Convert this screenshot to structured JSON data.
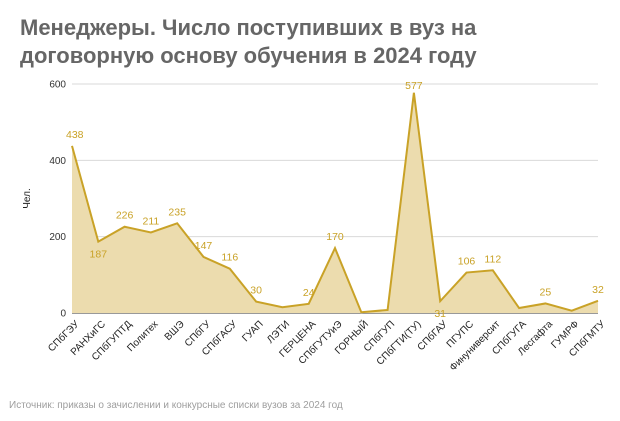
{
  "header": {
    "title": "Менеджеры. Число поступивших в вуз на\nдоговорную основу обучения в 2024 году"
  },
  "footer": {
    "source": "Источник: приказы о зачислении и конкурсные списки вузов за 2024 год"
  },
  "colors": {
    "line": "#c9a227",
    "fill": "#ecdcae",
    "label": "#c9a227",
    "grid": "#d9d9d9",
    "title": "#666666"
  },
  "chart_data": {
    "type": "area",
    "title": "Менеджеры. Число поступивших в вуз на договорную основу обучения в 2024 году",
    "ylabel": "Чел.",
    "xlabel": "",
    "ylim": [
      0,
      600
    ],
    "yticks": [
      0,
      200,
      400,
      600
    ],
    "grid": true,
    "legend": "none",
    "categories": [
      "СПбГЭУ",
      "РАНХиГС",
      "СПбГУПТД",
      "Политех",
      "ВШЭ",
      "СПбГУ",
      "СПбГАСУ",
      "ГУАП",
      "ЛЭТИ",
      "ГЕРЦЕНА",
      "СПбГУТУиЭ",
      "ГОРНЫЙ",
      "СПбГУП",
      "СПбГТИ(ТУ)",
      "СПбГАУ",
      "ПГУПС",
      "Финуниверсит",
      "СПбГУГА",
      "Лесгафта",
      "ГУМРФ",
      "СПбГМТУ"
    ],
    "values": [
      438,
      187,
      226,
      211,
      235,
      147,
      116,
      30,
      15,
      24,
      170,
      2,
      8,
      577,
      31,
      106,
      112,
      13,
      25,
      6,
      32
    ],
    "labels": [
      "438",
      "187",
      "226",
      "211",
      "235",
      "147",
      "116",
      "30",
      "",
      "24",
      "170",
      "",
      "",
      "577",
      "31",
      "106",
      "112",
      "",
      "25",
      "",
      "32"
    ]
  }
}
